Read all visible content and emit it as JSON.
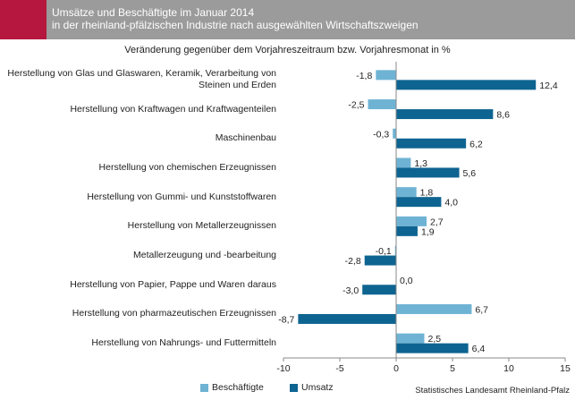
{
  "header": {
    "title_line1": "Umsätze und Beschäftigte im Januar 2014",
    "title_line2": "in der rheinland-pfälzischen Industrie nach ausgewählten Wirtschaftszweigen"
  },
  "colors": {
    "accent": "#b5173e",
    "header_bg": "#9b9b9b",
    "beschaeftigte": "#6fb3d4",
    "umsatz": "#0e6491"
  },
  "source": "Statistisches Landesamt Rheinland-Pfalz",
  "chart_data": {
    "type": "bar",
    "orientation": "horizontal",
    "title": "Veränderung gegenüber dem Vorjahreszeitraum bzw. Vorjahresmonat in %",
    "categories": [
      [
        "Herstellung von Glas und Glaswaren, Keramik, Verarbeitung von",
        "Steinen und Erden"
      ],
      [
        "Herstellung von Kraftwagen und Kraftwagenteilen"
      ],
      [
        "Maschinenbau"
      ],
      [
        "Herstellung von chemischen Erzeugnissen"
      ],
      [
        "Herstellung von Gummi- und Kunststoffwaren"
      ],
      [
        "Herstellung von Metallerzeugnissen"
      ],
      [
        "Metallerzeugung und -bearbeitung"
      ],
      [
        "Herstellung von Papier, Pappe und Waren daraus"
      ],
      [
        "Herstellung von pharmazeutischen Erzeugnissen"
      ],
      [
        "Herstellung von Nahrungs- und Futtermitteln"
      ]
    ],
    "series": [
      {
        "name": "Beschäftigte",
        "values": [
          -1.8,
          -2.5,
          -0.3,
          1.3,
          1.8,
          2.7,
          -0.1,
          0.0,
          6.7,
          2.5
        ],
        "labels": [
          "-1,8",
          "-2,5",
          "-0,3",
          "1,3",
          "1,8",
          "2,7",
          "-0,1",
          "0,0",
          "6,7",
          "2,5"
        ]
      },
      {
        "name": "Umsatz",
        "values": [
          12.4,
          8.6,
          6.2,
          5.6,
          4.0,
          1.9,
          -2.8,
          -3.0,
          -8.7,
          6.4
        ],
        "labels": [
          "12,4",
          "8,6",
          "6,2",
          "5,6",
          "4,0",
          "1,9",
          "-2,8",
          "-3,0",
          "-8,7",
          "6,4"
        ]
      }
    ],
    "xlim": [
      -10,
      15
    ],
    "xticks": [
      -10,
      -5,
      0,
      5,
      10,
      15
    ],
    "xtick_labels": [
      "-10",
      "-5",
      "0",
      "5",
      "10",
      "15"
    ],
    "legend_position": "bottom-left",
    "grid": false
  }
}
